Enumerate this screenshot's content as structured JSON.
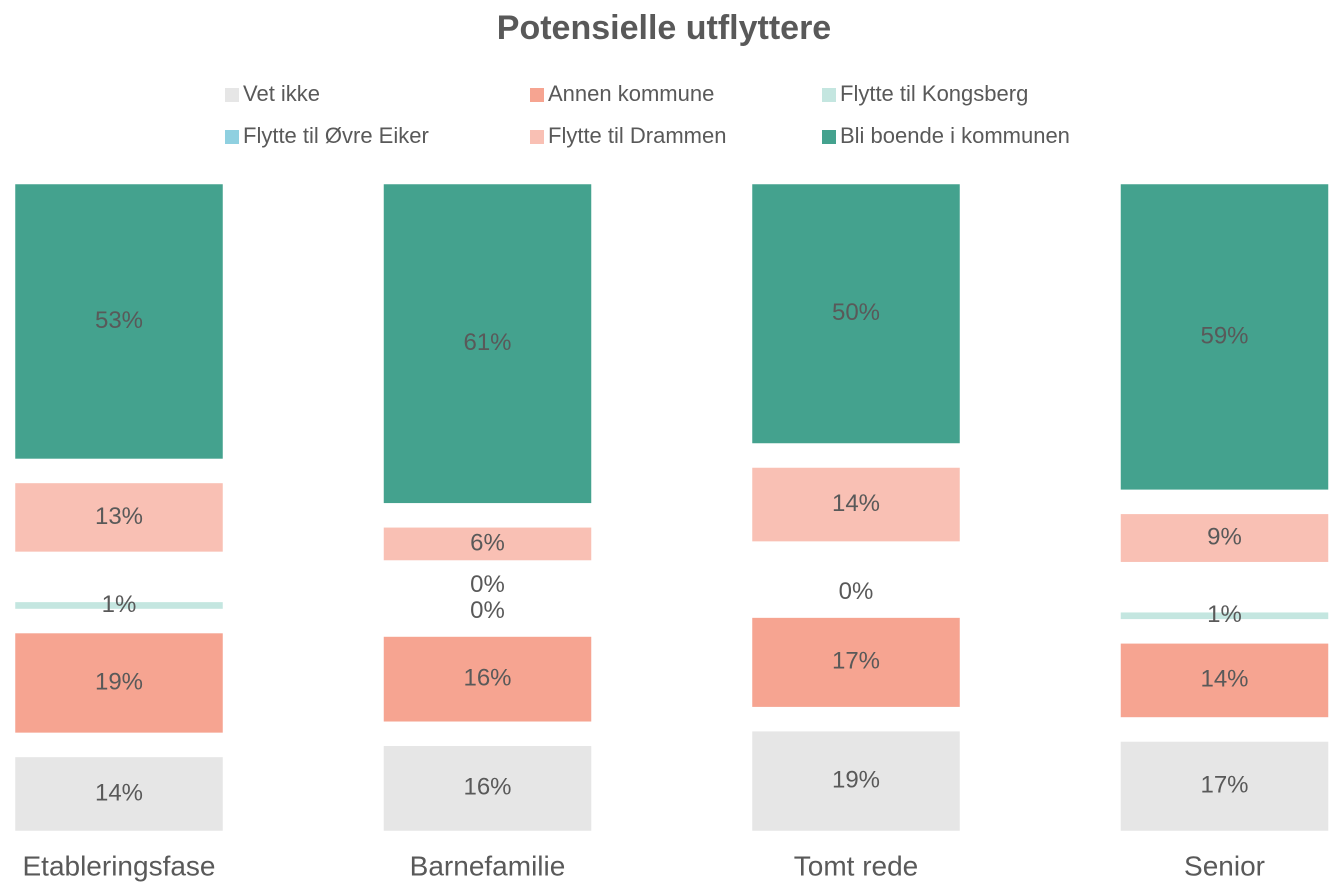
{
  "chart_data": {
    "type": "bar",
    "stacked": true,
    "title": "Potensielle utflyttere",
    "categories": [
      "Etableringsfase",
      "Barnefamilie",
      "Tomt rede",
      "Senior"
    ],
    "series": [
      {
        "name": "Vet ikke",
        "color": "#e6e6e6",
        "values": [
          14,
          16,
          19,
          17
        ],
        "value_labels": [
          "14%",
          "16%",
          "19%",
          "17%"
        ]
      },
      {
        "name": "Annen kommune",
        "color": "#f6a491",
        "values": [
          19,
          16,
          17,
          14
        ],
        "value_labels": [
          "19%",
          "16%",
          "17%",
          "14%"
        ]
      },
      {
        "name": "Flytte til Kongsberg",
        "color": "#c4e6e0",
        "values": [
          1,
          0,
          0,
          1
        ],
        "value_labels": [
          "1%",
          "0%",
          "0%",
          "1%"
        ]
      },
      {
        "name": "Flytte til Øvre Eiker",
        "color": "#8fd0e0",
        "values": [
          0,
          0,
          0,
          0
        ],
        "value_labels": [
          null,
          "0%",
          null,
          null
        ]
      },
      {
        "name": "Flytte til Drammen",
        "color": "#f9c0b4",
        "values": [
          13,
          6,
          14,
          9
        ],
        "value_labels": [
          "13%",
          "6%",
          "14%",
          "9%"
        ]
      },
      {
        "name": "Bli boende i kommunen",
        "color": "#44a28e",
        "values": [
          53,
          61,
          50,
          59
        ],
        "value_labels": [
          "53%",
          "61%",
          "50%",
          "59%"
        ]
      }
    ],
    "legend": "top"
  }
}
